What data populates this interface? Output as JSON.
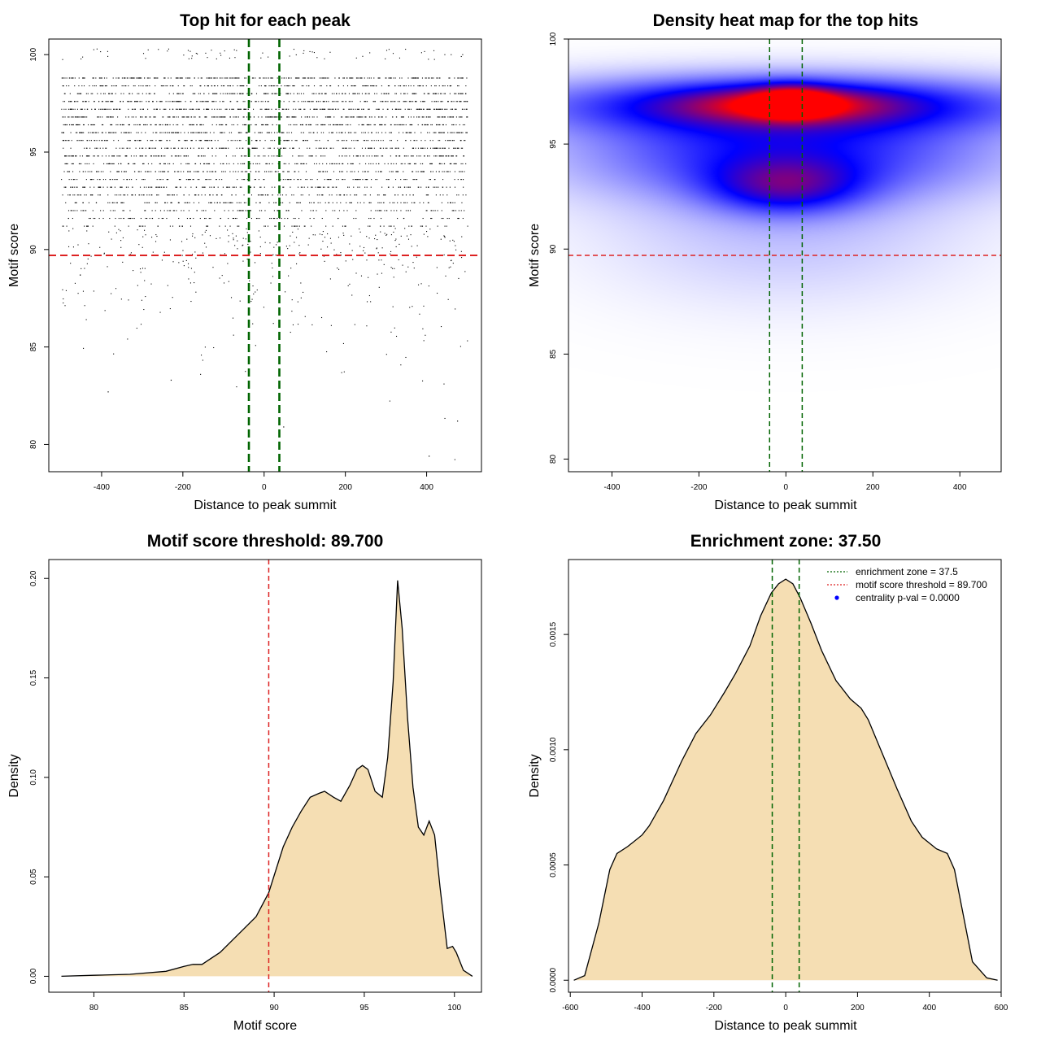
{
  "chart_data": [
    {
      "type": "scatter",
      "title": "Top hit for each peak",
      "xlabel": "Distance to peak summit",
      "ylabel": "Motif score",
      "xlim": [
        -530,
        535
      ],
      "ylim": [
        78.6,
        100.8
      ],
      "xticks": [
        "-400",
        "-200",
        "0",
        "200",
        "400"
      ],
      "yticks": [
        "80",
        "85",
        "90",
        "95",
        "100"
      ],
      "ref_lines": {
        "vertical": [
          -37.5,
          37.5
        ],
        "vertical_color": "#006400",
        "horizontal": 89.7,
        "horizontal_color": "#dd2222"
      },
      "point_summary": {
        "x_range": [
          -500,
          500
        ],
        "score_levels": [
          100.0,
          98.8,
          98.4,
          98.0,
          97.6,
          97.2,
          96.8,
          96.4,
          96.0,
          95.6,
          95.2,
          94.8,
          94.4,
          94.0,
          93.6,
          93.2,
          92.8,
          92.4,
          92.0,
          91.6,
          91.2,
          90.8,
          90.4,
          90.0,
          89.6,
          89.2,
          88.8,
          88.4,
          88.0,
          87.6,
          87.2,
          86.8,
          86.4,
          86.0,
          85.6,
          85.2,
          84.8,
          84.4,
          84.0,
          83.6,
          83.2,
          82.8,
          82.4,
          81.2,
          79.4
        ],
        "relative_density": [
          0.25,
          1.0,
          0.7,
          0.8,
          0.9,
          1.0,
          1.0,
          0.9,
          0.85,
          0.7,
          0.7,
          0.75,
          0.65,
          0.7,
          0.55,
          0.6,
          0.55,
          0.5,
          0.45,
          0.35,
          0.3,
          0.25,
          0.2,
          0.16,
          0.12,
          0.1,
          0.09,
          0.08,
          0.07,
          0.06,
          0.05,
          0.04,
          0.035,
          0.03,
          0.025,
          0.02,
          0.015,
          0.012,
          0.01,
          0.008,
          0.006,
          0.005,
          0.004,
          0.002,
          0.002
        ]
      },
      "outliers": [
        {
          "x": 405,
          "y": 79.4
        },
        {
          "x": 475,
          "y": 81.2
        },
        {
          "x": 47,
          "y": 80.9
        },
        {
          "x": -385,
          "y": 82.7
        },
        {
          "x": -230,
          "y": 83.3
        }
      ]
    },
    {
      "type": "heatmap",
      "title": "Density heat map for the top hits",
      "xlabel": "Distance to peak summit",
      "ylabel": "Motif score",
      "xlim": [
        -500,
        495
      ],
      "ylim": [
        79.4,
        100.0
      ],
      "xticks": [
        "-400",
        "-200",
        "0",
        "200",
        "400"
      ],
      "yticks": [
        "80",
        "85",
        "90",
        "95",
        "100"
      ],
      "ref_lines": {
        "vertical": [
          -37.5,
          37.5
        ],
        "vertical_color": "#006400",
        "horizontal": 89.7,
        "horizontal_color": "#dd2222"
      },
      "colors": [
        "#ffffff",
        "#0000ff",
        "#ff0000"
      ],
      "density_blobs": [
        {
          "x": 0,
          "y": 96.9,
          "sx": 420,
          "sy": 1.0,
          "w": 0.55
        },
        {
          "x": 0,
          "y": 96.9,
          "sx": 160,
          "sy": 0.55,
          "w": 0.45
        },
        {
          "x": 15,
          "y": 97.0,
          "sx": 60,
          "sy": 0.5,
          "w": 0.55
        },
        {
          "x": 0,
          "y": 94.5,
          "sx": 350,
          "sy": 1.5,
          "w": 0.4
        },
        {
          "x": 0,
          "y": 93.0,
          "sx": 120,
          "sy": 0.9,
          "w": 0.4
        },
        {
          "x": 0,
          "y": 91.0,
          "sx": 300,
          "sy": 2.5,
          "w": 0.12
        }
      ]
    },
    {
      "type": "area",
      "title": "Motif score threshold: 89.700",
      "xlabel": "Motif score",
      "ylabel": "Density",
      "xlim": [
        77.5,
        101.5
      ],
      "ylim": [
        -0.008,
        0.2095
      ],
      "xticks": [
        "80",
        "85",
        "90",
        "95",
        "100"
      ],
      "yticks": [
        "0.00",
        "0.05",
        "0.10",
        "0.15",
        "0.20"
      ],
      "threshold": 89.7,
      "threshold_color": "#dd2222",
      "fill_color": "#f5deb3",
      "x": [
        78.2,
        80,
        82,
        84,
        85,
        85.5,
        86,
        87,
        88,
        89,
        89.7,
        90.5,
        91,
        91.5,
        92,
        92.5,
        92.8,
        93.3,
        93.7,
        94.2,
        94.6,
        94.9,
        95.2,
        95.6,
        96.0,
        96.3,
        96.6,
        96.85,
        97.1,
        97.4,
        97.7,
        98.0,
        98.3,
        98.6,
        98.9,
        99.2,
        99.6,
        99.9,
        100.1,
        100.5,
        101.0
      ],
      "y": [
        0.0,
        0.0005,
        0.001,
        0.0025,
        0.005,
        0.006,
        0.006,
        0.012,
        0.021,
        0.03,
        0.042,
        0.065,
        0.075,
        0.083,
        0.09,
        0.092,
        0.093,
        0.09,
        0.088,
        0.096,
        0.104,
        0.106,
        0.104,
        0.093,
        0.09,
        0.11,
        0.148,
        0.199,
        0.175,
        0.13,
        0.095,
        0.075,
        0.071,
        0.078,
        0.071,
        0.045,
        0.014,
        0.015,
        0.012,
        0.003,
        0.0
      ]
    },
    {
      "type": "area",
      "title": "Enrichment zone: 37.50",
      "xlabel": "Distance to peak summit",
      "ylabel": "Density",
      "xlim": [
        -605,
        600
      ],
      "ylim": [
        -5.2e-05,
        0.001825
      ],
      "xticks": [
        "-600",
        "-400",
        "-200",
        "0",
        "200",
        "400",
        "600"
      ],
      "yticks": [
        "0.0000",
        "0.0005",
        "0.0010",
        "0.0015"
      ],
      "enrichment_zone": [
        -37.5,
        37.5
      ],
      "fill_color": "#f5deb3",
      "legend": [
        {
          "label": "enrichment zone = 37.5",
          "color": "#006400",
          "symbol": "dotted"
        },
        {
          "label": "motif score threshold = 89.700",
          "color": "#dd2222",
          "symbol": "dotted"
        },
        {
          "label": "centrality p-val = 0.0000",
          "color": "#0000ff",
          "symbol": "point"
        }
      ],
      "x": [
        -590,
        -560,
        -520,
        -490,
        -470,
        -440,
        -400,
        -380,
        -340,
        -290,
        -250,
        -210,
        -170,
        -140,
        -100,
        -70,
        -40,
        -20,
        0,
        20,
        40,
        70,
        100,
        140,
        180,
        210,
        230,
        270,
        310,
        350,
        380,
        420,
        450,
        470,
        490,
        520,
        560,
        590
      ],
      "y": [
        0.0,
        2e-05,
        0.00025,
        0.00048,
        0.00055,
        0.00058,
        0.00063,
        0.00067,
        0.00078,
        0.00095,
        0.00107,
        0.00115,
        0.00125,
        0.00133,
        0.00145,
        0.00158,
        0.00168,
        0.00172,
        0.00174,
        0.00172,
        0.00166,
        0.00155,
        0.00143,
        0.0013,
        0.00122,
        0.00118,
        0.00113,
        0.00098,
        0.00083,
        0.00069,
        0.00062,
        0.00057,
        0.00055,
        0.00048,
        0.00032,
        8e-05,
        1e-05,
        0.0
      ]
    }
  ]
}
